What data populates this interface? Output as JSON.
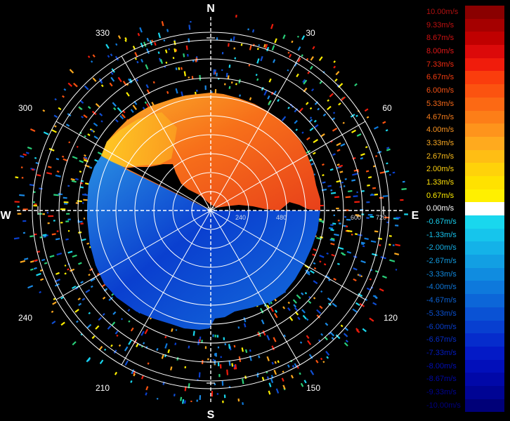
{
  "compass": {
    "north": "N",
    "east": "E",
    "south": "S",
    "west": "W"
  },
  "bearings": [
    "30",
    "60",
    "120",
    "150",
    "210",
    "240",
    "300",
    "330"
  ],
  "range_labels": [
    "240",
    "480",
    "600",
    "720"
  ],
  "velocity_scale": [
    {
      "label": "10.00m/s",
      "color": "#8a0000",
      "text_color": "#b01010"
    },
    {
      "label": "9.33m/s",
      "color": "#a50000",
      "text_color": "#c01010"
    },
    {
      "label": "8.67m/s",
      "color": "#c00000",
      "text_color": "#d21212"
    },
    {
      "label": "8.00m/s",
      "color": "#dc0a0a",
      "text_color": "#e31818"
    },
    {
      "label": "7.33m/s",
      "color": "#f01c0c",
      "text_color": "#f02a10"
    },
    {
      "label": "6.67m/s",
      "color": "#fa3d0d",
      "text_color": "#f43d10"
    },
    {
      "label": "6.00m/s",
      "color": "#fb5310",
      "text_color": "#f55215"
    },
    {
      "label": "5.33m/s",
      "color": "#fc6914",
      "text_color": "#f66818"
    },
    {
      "label": "4.67m/s",
      "color": "#fd7e18",
      "text_color": "#f87d1c"
    },
    {
      "label": "4.00m/s",
      "color": "#fe941c",
      "text_color": "#f99320"
    },
    {
      "label": "3.33m/s",
      "color": "#ffaa1e",
      "text_color": "#fbaa22"
    },
    {
      "label": "2.67m/s",
      "color": "#ffbe14",
      "text_color": "#fcbd1a"
    },
    {
      "label": "2.00m/s",
      "color": "#ffd20a",
      "text_color": "#fdd010"
    },
    {
      "label": "1.33m/s",
      "color": "#ffe200",
      "text_color": "#fee008"
    },
    {
      "label": "0.67m/s",
      "color": "#fff000",
      "text_color": "#ffee00"
    },
    {
      "label": "0.00m/s",
      "color": "#ffffff",
      "text_color": "#ffffff"
    },
    {
      "label": "-0.67m/s",
      "color": "#19d7ee",
      "text_color": "#19d0ee"
    },
    {
      "label": "-1.33m/s",
      "color": "#16c5ec",
      "text_color": "#16c0ea"
    },
    {
      "label": "-2.00m/s",
      "color": "#14b2e8",
      "text_color": "#14aee4"
    },
    {
      "label": "-2.67m/s",
      "color": "#129fe3",
      "text_color": "#129ce0"
    },
    {
      "label": "-3.33m/s",
      "color": "#108ce0",
      "text_color": "#1088dc"
    },
    {
      "label": "-4.00m/s",
      "color": "#0e79dc",
      "text_color": "#0e76d8"
    },
    {
      "label": "-4.67m/s",
      "color": "#0c66d8",
      "text_color": "#0c62d4"
    },
    {
      "label": "-5.33m/s",
      "color": "#0a52d4",
      "text_color": "#0a50d0"
    },
    {
      "label": "-6.00m/s",
      "color": "#083fd0",
      "text_color": "#083ecc"
    },
    {
      "label": "-6.67m/s",
      "color": "#062ccc",
      "text_color": "#062cc8"
    },
    {
      "label": "-7.33m/s",
      "color": "#041ac6",
      "text_color": "#041ac2"
    },
    {
      "label": "-8.00m/s",
      "color": "#020fba",
      "text_color": "#020eb6"
    },
    {
      "label": "-8.67m/s",
      "color": "#0108a8",
      "text_color": "#0108a4"
    },
    {
      "label": "-9.33m/s",
      "color": "#000494",
      "text_color": "#000490"
    },
    {
      "label": "-10.00m/s",
      "color": "#000078",
      "text_color": "#000080"
    }
  ]
}
